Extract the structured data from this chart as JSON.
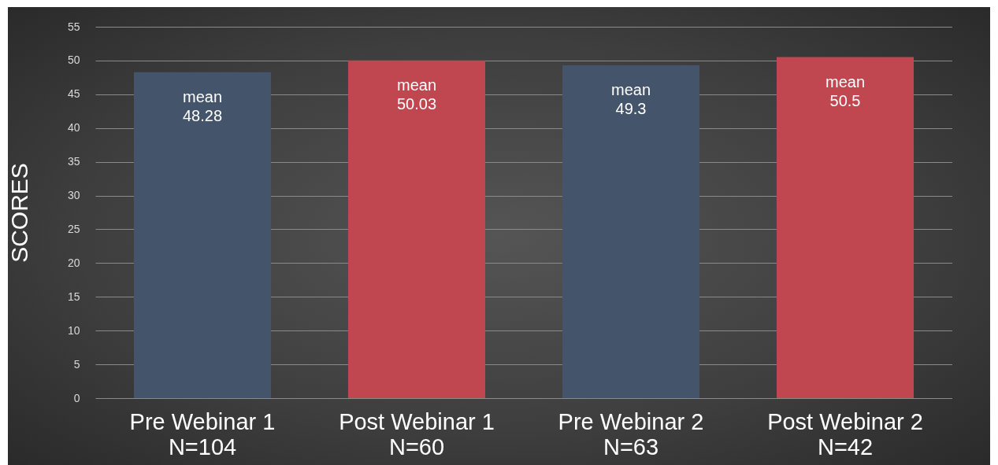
{
  "chart_data": {
    "type": "bar",
    "ylabel": "SCORES",
    "categories": [
      "Pre Webinar 1\nN=104",
      "Post Webinar 1\nN=60",
      "Pre Webinar 2\nN=63",
      "Post Webinar 2\nN=42"
    ],
    "values": [
      48.28,
      50.03,
      49.3,
      50.5
    ],
    "colors": [
      "#44546a",
      "#c0464f",
      "#44546a",
      "#c0464f"
    ],
    "value_labels": [
      "mean\n48.28",
      "mean\n50.03",
      "mean\n49.3",
      "mean\n50.5"
    ],
    "ylim": [
      0,
      55
    ],
    "yticks": [
      0,
      5,
      10,
      15,
      20,
      25,
      30,
      35,
      40,
      45,
      50,
      55
    ],
    "grid": "y"
  }
}
